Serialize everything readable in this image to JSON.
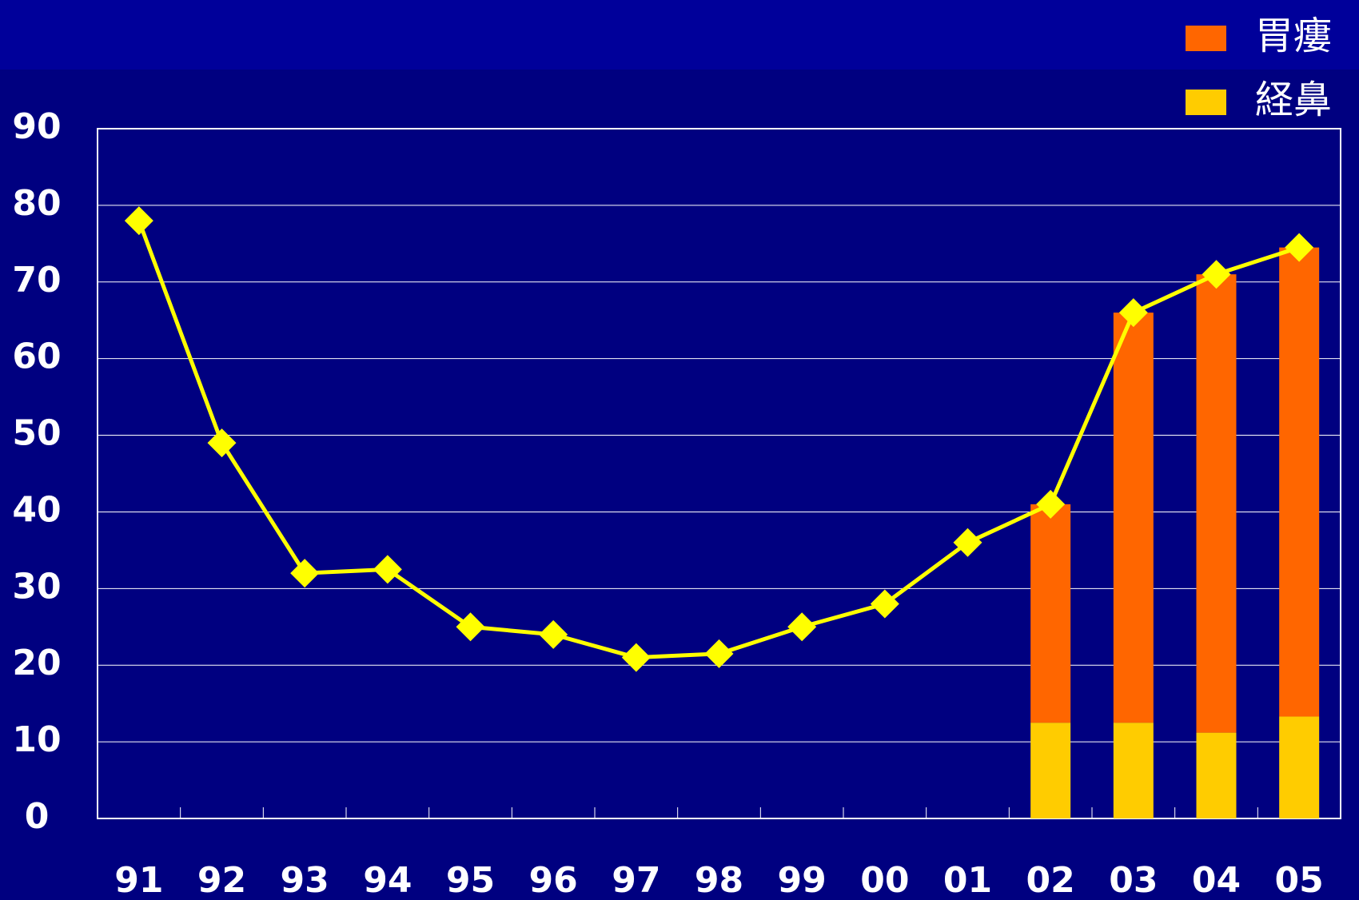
{
  "chart_data": {
    "type": "bar-line",
    "categories": [
      "91",
      "92",
      "93",
      "94",
      "95",
      "96",
      "97",
      "98",
      "99",
      "00",
      "01",
      "02",
      "03",
      "04",
      "05"
    ],
    "series": [
      {
        "name": "経鼻",
        "type": "bar",
        "color": "#ffcc00",
        "values": [
          null,
          null,
          null,
          null,
          null,
          null,
          null,
          null,
          null,
          null,
          null,
          12.5,
          12.5,
          11.2,
          13.3
        ]
      },
      {
        "name": "胃瘻",
        "type": "bar",
        "color": "#ff6600",
        "values": [
          null,
          null,
          null,
          null,
          null,
          null,
          null,
          null,
          null,
          null,
          null,
          28.5,
          53.5,
          59.8,
          61.2
        ]
      },
      {
        "type": "line",
        "color": "#ffff00",
        "values": [
          78,
          49,
          32,
          32.5,
          25,
          24,
          21,
          21.5,
          25,
          28,
          36,
          41,
          66,
          71,
          74.5
        ]
      }
    ],
    "ylim": [
      0,
      90
    ],
    "yticks": [
      0,
      10,
      20,
      30,
      40,
      50,
      60,
      70,
      80,
      90
    ],
    "grid": true,
    "legend": "top-right"
  }
}
